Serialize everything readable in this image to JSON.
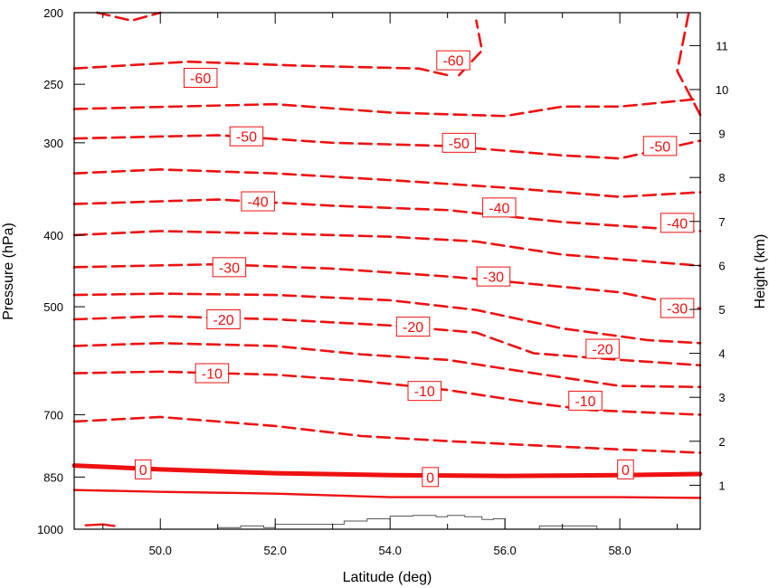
{
  "chart_data": {
    "type": "contour",
    "xlabel": "Latitude (deg)",
    "ylabel": "Pressure (hPa)",
    "y2label": "Height (km)",
    "xlim": [
      48.5,
      59.4
    ],
    "x_ticks": [
      50.0,
      52.0,
      54.0,
      56.0,
      58.0
    ],
    "x_tick_labels": [
      "50.0",
      "52.0",
      "54.0",
      "56.0",
      "58.0"
    ],
    "pressure_range": [
      200,
      1000
    ],
    "y_scale": "log",
    "pressure_ticks": [
      200,
      250,
      300,
      400,
      500,
      700,
      850,
      1000
    ],
    "pressure_tick_labels": [
      "200",
      "250",
      "300",
      "400",
      "500",
      "700",
      "850",
      "1000"
    ],
    "height_ticks_km": [
      1,
      2,
      3,
      4,
      5,
      6,
      7,
      8,
      9,
      10,
      11
    ],
    "height_tick_labels": [
      "1",
      "2",
      "3",
      "4",
      "5",
      "6",
      "7",
      "8",
      "9",
      "10",
      "11"
    ],
    "contour_color": "#ee1111",
    "terrain_color": "#555555",
    "contours": [
      {
        "level": -60,
        "style": "dashed",
        "points": [
          [
            48.5,
            238
          ],
          [
            50.5,
            233
          ],
          [
            52.5,
            236
          ],
          [
            54.5,
            238
          ],
          [
            55.0,
            243
          ]
        ]
      },
      {
        "level": -60,
        "style": "dashed",
        "points": [
          [
            55.2,
            243
          ],
          [
            55.6,
            225
          ],
          [
            55.5,
            205
          ]
        ]
      },
      {
        "level": -60,
        "style": "dashed",
        "points": [
          [
            48.9,
            200
          ],
          [
            49.5,
            205
          ],
          [
            50.0,
            200
          ]
        ]
      },
      {
        "level": -60,
        "style": "dashed",
        "points": [
          [
            59.4,
            275
          ],
          [
            59.0,
            240
          ],
          [
            59.2,
            200
          ]
        ]
      },
      {
        "level": -55,
        "style": "dashed",
        "points": [
          [
            48.5,
            270
          ],
          [
            52.0,
            266
          ],
          [
            54.0,
            273
          ],
          [
            56.0,
            276
          ],
          [
            57.0,
            268
          ],
          [
            58.0,
            268
          ],
          [
            59.3,
            262
          ]
        ]
      },
      {
        "level": -50,
        "style": "dashed",
        "points": [
          [
            48.5,
            296
          ],
          [
            51.0,
            293
          ],
          [
            53.0,
            300
          ],
          [
            55.0,
            303
          ],
          [
            57.0,
            312
          ],
          [
            58.0,
            315
          ],
          [
            59.4,
            298
          ]
        ]
      },
      {
        "level": -45,
        "style": "dashed",
        "points": [
          [
            48.5,
            330
          ],
          [
            50.0,
            326
          ],
          [
            52.0,
            330
          ],
          [
            54.0,
            337
          ],
          [
            56.0,
            345
          ],
          [
            58.0,
            355
          ],
          [
            59.4,
            350
          ]
        ]
      },
      {
        "level": -40,
        "style": "dashed",
        "points": [
          [
            48.5,
            363
          ],
          [
            51.0,
            358
          ],
          [
            53.0,
            365
          ],
          [
            55.0,
            370
          ],
          [
            57.0,
            384
          ],
          [
            59.4,
            395
          ]
        ]
      },
      {
        "level": -35,
        "style": "dashed",
        "points": [
          [
            48.5,
            400
          ],
          [
            50.0,
            395
          ],
          [
            52.0,
            398
          ],
          [
            54.0,
            402
          ],
          [
            55.5,
            408
          ],
          [
            57.0,
            425
          ],
          [
            59.4,
            440
          ]
        ]
      },
      {
        "level": -30,
        "style": "dashed",
        "points": [
          [
            48.5,
            442
          ],
          [
            51.0,
            438
          ],
          [
            53.0,
            444
          ],
          [
            55.0,
            455
          ],
          [
            56.0,
            462
          ],
          [
            58.0,
            478
          ],
          [
            59.4,
            503
          ]
        ]
      },
      {
        "level": -25,
        "style": "dashed",
        "points": [
          [
            48.5,
            482
          ],
          [
            50.0,
            480
          ],
          [
            52.0,
            482
          ],
          [
            54.0,
            490
          ],
          [
            55.5,
            505
          ],
          [
            57.0,
            535
          ],
          [
            58.5,
            555
          ],
          [
            59.4,
            560
          ]
        ]
      },
      {
        "level": -20,
        "style": "dashed",
        "points": [
          [
            48.5,
            520
          ],
          [
            50.0,
            515
          ],
          [
            52.0,
            520
          ],
          [
            54.0,
            530
          ],
          [
            55.5,
            542
          ],
          [
            56.5,
            578
          ],
          [
            58.0,
            590
          ],
          [
            59.4,
            600
          ]
        ]
      },
      {
        "level": -15,
        "style": "dashed",
        "points": [
          [
            48.5,
            565
          ],
          [
            50.0,
            560
          ],
          [
            52.0,
            565
          ],
          [
            53.5,
            580
          ],
          [
            55.0,
            590
          ],
          [
            56.5,
            615
          ],
          [
            58.0,
            640
          ],
          [
            59.4,
            642
          ]
        ]
      },
      {
        "level": -10,
        "style": "dashed",
        "points": [
          [
            48.5,
            615
          ],
          [
            50.0,
            612
          ],
          [
            52.0,
            618
          ],
          [
            53.5,
            630
          ],
          [
            55.0,
            648
          ],
          [
            56.5,
            675
          ],
          [
            57.5,
            690
          ],
          [
            59.4,
            700
          ]
        ]
      },
      {
        "level": -5,
        "style": "dashed",
        "points": [
          [
            48.5,
            715
          ],
          [
            50.0,
            705
          ],
          [
            52.0,
            725
          ],
          [
            53.5,
            748
          ],
          [
            55.0,
            760
          ],
          [
            56.5,
            770
          ],
          [
            58.0,
            780
          ],
          [
            59.4,
            788
          ]
        ]
      },
      {
        "level": 0,
        "style": "bold",
        "points": [
          [
            48.5,
            820
          ],
          [
            50.0,
            830
          ],
          [
            52.0,
            840
          ],
          [
            54.0,
            845
          ],
          [
            56.0,
            847
          ],
          [
            58.0,
            845
          ],
          [
            59.4,
            842
          ]
        ]
      },
      {
        "level": 5,
        "style": "solid",
        "points": [
          [
            48.5,
            885
          ],
          [
            50.0,
            890
          ],
          [
            52.0,
            895
          ],
          [
            54.0,
            905
          ],
          [
            56.0,
            905
          ],
          [
            58.0,
            905
          ],
          [
            59.4,
            907
          ]
        ]
      },
      {
        "level": 10,
        "style": "solid",
        "points": [
          [
            48.7,
            988
          ],
          [
            49.0,
            985
          ],
          [
            49.2,
            990
          ]
        ]
      }
    ],
    "labels": [
      {
        "text": "-60",
        "lat": 50.7,
        "p": 245
      },
      {
        "text": "-60",
        "lat": 55.1,
        "p": 232
      },
      {
        "text": "-50",
        "lat": 51.5,
        "p": 294
      },
      {
        "text": "-50",
        "lat": 55.2,
        "p": 300
      },
      {
        "text": "-50",
        "lat": 58.7,
        "p": 303
      },
      {
        "text": "-40",
        "lat": 51.7,
        "p": 360
      },
      {
        "text": "-40",
        "lat": 55.9,
        "p": 367
      },
      {
        "text": "-40",
        "lat": 59.0,
        "p": 385
      },
      {
        "text": "-30",
        "lat": 51.2,
        "p": 442
      },
      {
        "text": "-30",
        "lat": 55.8,
        "p": 455
      },
      {
        "text": "-30",
        "lat": 59.0,
        "p": 502
      },
      {
        "text": "-20",
        "lat": 51.1,
        "p": 520
      },
      {
        "text": "-20",
        "lat": 54.4,
        "p": 532
      },
      {
        "text": "-20",
        "lat": 57.7,
        "p": 570
      },
      {
        "text": "-10",
        "lat": 50.9,
        "p": 615
      },
      {
        "text": "-10",
        "lat": 54.6,
        "p": 650
      },
      {
        "text": "-10",
        "lat": 57.4,
        "p": 670
      },
      {
        "text": "0",
        "lat": 49.7,
        "p": 830
      },
      {
        "text": "0",
        "lat": 54.7,
        "p": 850
      },
      {
        "text": "0",
        "lat": 58.1,
        "p": 830
      }
    ],
    "terrain_pressure": [
      [
        48.5,
        1000
      ],
      [
        51.0,
        1000
      ],
      [
        51.0,
        995
      ],
      [
        51.4,
        990
      ],
      [
        51.8,
        995
      ],
      [
        52.0,
        985
      ],
      [
        52.8,
        985
      ],
      [
        53.2,
        975
      ],
      [
        53.6,
        968
      ],
      [
        54.0,
        960
      ],
      [
        54.4,
        958
      ],
      [
        54.8,
        962
      ],
      [
        55.0,
        958
      ],
      [
        55.3,
        962
      ],
      [
        55.6,
        970
      ],
      [
        55.8,
        968
      ],
      [
        56.0,
        1000
      ],
      [
        56.5,
        1000
      ],
      [
        56.6,
        990
      ],
      [
        57.4,
        990
      ],
      [
        57.6,
        1000
      ],
      [
        59.4,
        1000
      ]
    ]
  }
}
